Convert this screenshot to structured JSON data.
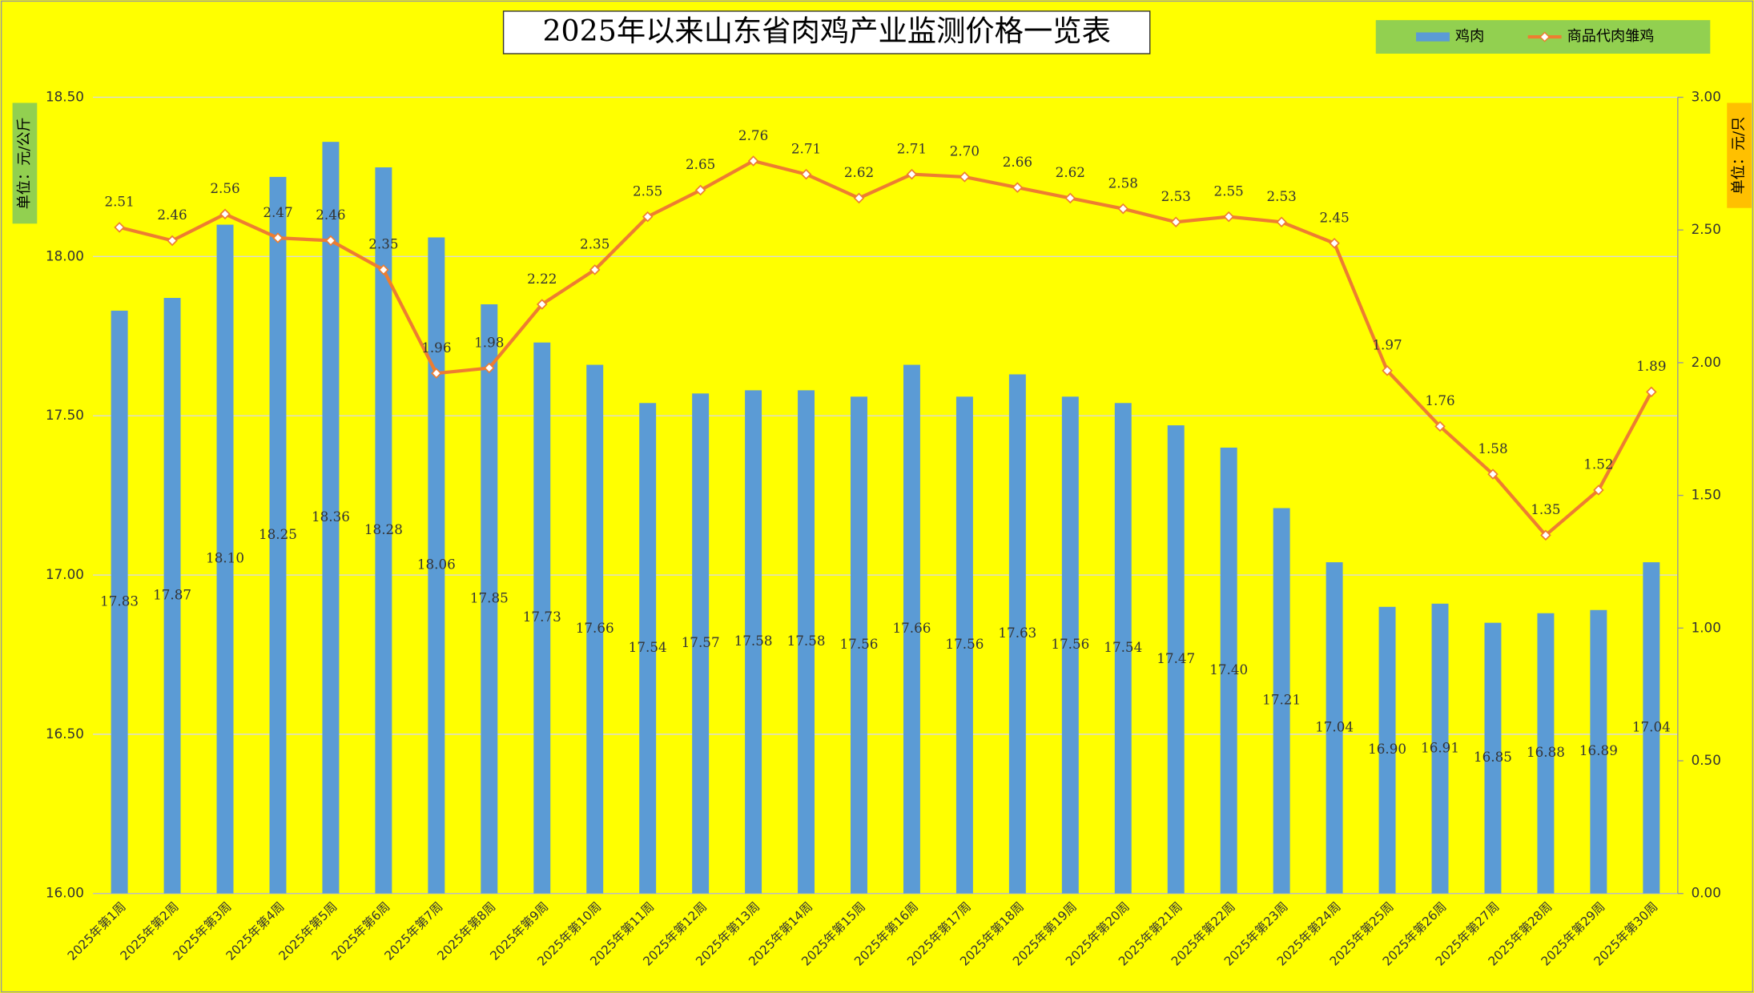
{
  "chart_data": {
    "type": "bar-line",
    "title": "2025年以来山东省肉鸡产业监测价格一览表",
    "ylabel": "单位：元/公斤",
    "y2label": "单位：元/只",
    "categories": [
      "2025年第1周",
      "2025年第2周",
      "2025年第3周",
      "2025年第4周",
      "2025年第5周",
      "2025年第6周",
      "2025年第7周",
      "2025年第8周",
      "2025年第9周",
      "2025年第10周",
      "2025年第11周",
      "2025年第12周",
      "2025年第13周",
      "2025年第14周",
      "2025年第15周",
      "2025年第16周",
      "2025年第17周",
      "2025年第18周",
      "2025年第19周",
      "2025年第20周",
      "2025年第21周",
      "2025年第22周",
      "2025年第23周",
      "2025年第24周",
      "2025年第25周",
      "2025年第26周",
      "2025年第27周",
      "2025年第28周",
      "2025年第29周",
      "2025年第30周"
    ],
    "series": [
      {
        "name": "鸡肉",
        "type": "bar",
        "color": "#5b9bd5",
        "values": [
          17.83,
          17.87,
          18.1,
          18.25,
          18.36,
          18.28,
          18.06,
          17.85,
          17.73,
          17.66,
          17.54,
          17.57,
          17.58,
          17.58,
          17.56,
          17.66,
          17.56,
          17.63,
          17.56,
          17.54,
          17.47,
          17.4,
          17.21,
          17.04,
          16.9,
          16.91,
          16.85,
          16.88,
          16.89,
          17.04
        ],
        "value_labels": [
          "17.83",
          "17.87",
          "18.10",
          "18.25",
          "18.36",
          "18.28",
          "18.06",
          "17.85",
          "17.73",
          "17.66",
          "17.54",
          "17.57",
          "17.58",
          "17.58",
          "17.56",
          "17.66",
          "17.56",
          "17.63",
          "17.56",
          "17.54",
          "17.47",
          "17.40",
          "17.21",
          "17.04",
          "16.90",
          "16.91",
          "16.85",
          "16.88",
          "16.89",
          "17.04"
        ]
      },
      {
        "name": "商品代肉雏鸡",
        "type": "line",
        "axis": "y2",
        "color": "#ed7d31",
        "values": [
          2.51,
          2.46,
          2.56,
          2.47,
          2.46,
          2.35,
          1.96,
          1.98,
          2.22,
          2.35,
          2.55,
          2.65,
          2.76,
          2.71,
          2.62,
          2.71,
          2.7,
          2.66,
          2.62,
          2.58,
          2.53,
          2.55,
          2.53,
          2.45,
          1.97,
          1.76,
          1.58,
          1.35,
          1.52,
          1.89
        ],
        "value_labels": [
          "2.51",
          "2.46",
          "2.56",
          "2.47",
          "2.46",
          "2.35",
          "1.96",
          "1.98",
          "2.22",
          "2.35",
          "2.55",
          "2.65",
          "2.76",
          "2.71",
          "2.62",
          "2.71",
          "2.70",
          "2.66",
          "2.62",
          "2.58",
          "2.53",
          "2.55",
          "2.53",
          "2.45",
          "1.97",
          "1.76",
          "1.58",
          "1.35",
          "1.52",
          "1.89"
        ]
      }
    ],
    "ylim": [
      16,
      18.5
    ],
    "yticks": [
      {
        "value": 16,
        "label": "16.00"
      },
      {
        "value": 16.5,
        "label": "16.50"
      },
      {
        "value": 17,
        "label": "17.00"
      },
      {
        "value": 17.5,
        "label": "17.50"
      },
      {
        "value": 18,
        "label": "18.00"
      },
      {
        "value": 18.5,
        "label": "18.50"
      }
    ],
    "y2lim": [
      0,
      3
    ],
    "y2ticks": [
      {
        "value": 0,
        "label": "0.00"
      },
      {
        "value": 0.5,
        "label": "0.50"
      },
      {
        "value": 1,
        "label": "1.00"
      },
      {
        "value": 1.5,
        "label": "1.50"
      },
      {
        "value": 2,
        "label": "2.00"
      },
      {
        "value": 2.5,
        "label": "2.50"
      },
      {
        "value": 3,
        "label": "3.00"
      }
    ],
    "grid": true
  }
}
